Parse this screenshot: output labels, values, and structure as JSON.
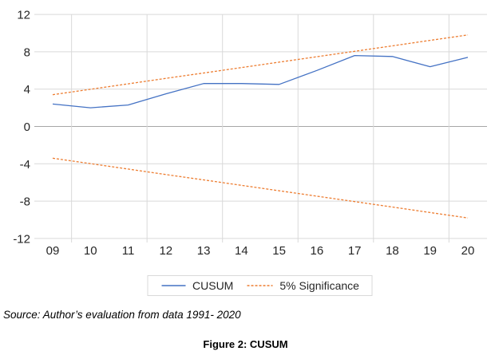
{
  "chart_data": {
    "type": "line",
    "title": "",
    "xlabel": "",
    "ylabel": "",
    "categories": [
      "09",
      "10",
      "11",
      "12",
      "13",
      "14",
      "15",
      "16",
      "17",
      "18",
      "19",
      "20"
    ],
    "series": [
      {
        "id": "cusum-line",
        "name": "CUSUM",
        "color": "#4472C4",
        "style": "solid",
        "values": [
          2.4,
          2.0,
          2.3,
          3.5,
          4.6,
          4.6,
          4.5,
          6.0,
          7.6,
          7.5,
          6.4,
          7.4
        ]
      },
      {
        "id": "significance-upper-line",
        "name": "5% Significance",
        "color": "#ED7D31",
        "style": "dashed",
        "values": [
          3.4,
          3.98,
          4.56,
          5.15,
          5.73,
          6.31,
          6.89,
          7.47,
          8.05,
          8.63,
          9.22,
          9.8
        ]
      },
      {
        "id": "significance-lower-line",
        "name": "5% Significance",
        "color": "#ED7D31",
        "style": "dashed",
        "values": [
          -3.4,
          -3.98,
          -4.56,
          -5.15,
          -5.73,
          -6.31,
          -6.89,
          -7.47,
          -8.05,
          -8.63,
          -9.22,
          -9.8
        ]
      }
    ],
    "ylim": [
      -12,
      12
    ],
    "yticks": [
      12,
      8,
      4,
      0,
      -4,
      -8,
      -12
    ],
    "grid": true,
    "legend_position": "bottom",
    "legend_entries": [
      "CUSUM",
      "5% Significance"
    ]
  },
  "legend": {
    "cusum_label": "CUSUM",
    "significance_label": "5% Significance"
  },
  "source_note": "Source: Author’s evaluation from data 1991- 2020",
  "caption": "Figure 2: CUSUM",
  "colors": {
    "cusum": "#4472C4",
    "significance": "#ED7D31",
    "gridline": "#D9D9D9",
    "zero_line": "#A6A6A6",
    "axis_text": "#262626"
  }
}
